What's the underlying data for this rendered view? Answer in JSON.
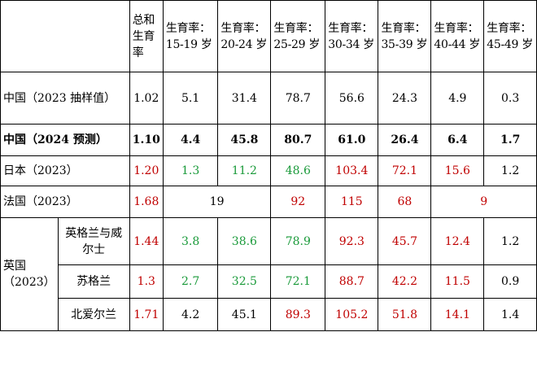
{
  "header": {
    "tfr": "总和生育率",
    "ages": [
      "生育率：15-19 岁",
      "生育率：20-24 岁",
      "生育率：25-29 岁",
      "生育率：30-34 岁",
      "生育率：35-39 岁",
      "生育率：40-44 岁",
      "生育率：45-49 岁"
    ]
  },
  "rows": {
    "cn2023": {
      "label": "中国（2023 抽样值）",
      "values": [
        "1.02",
        "5.1",
        "31.4",
        "78.7",
        "56.6",
        "24.3",
        "4.9",
        "0.3"
      ]
    },
    "cn2024": {
      "label": "中国（2024 预测）",
      "values": [
        "1.10",
        "4.4",
        "45.8",
        "80.7",
        "61.0",
        "26.4",
        "6.4",
        "1.7"
      ]
    },
    "jp": {
      "label": "日本（2023）",
      "values": [
        "1.20",
        "1.3",
        "11.2",
        "48.6",
        "103.4",
        "72.1",
        "15.6",
        "1.2"
      ],
      "colors": [
        "#c00000",
        "#1a9a3a",
        "#1a9a3a",
        "#1a9a3a",
        "#c00000",
        "#c00000",
        "#c00000",
        "#000000"
      ]
    },
    "fr": {
      "label": "法国（2023）",
      "values": [
        "1.68",
        "19",
        "92",
        "115",
        "68",
        "9"
      ],
      "colors": [
        "#c00000",
        "#000000",
        "#c00000",
        "#c00000",
        "#c00000",
        "#c00000"
      ]
    },
    "uk": {
      "label": "英国（2023）",
      "sub": [
        {
          "label": "英格兰与威尔士",
          "values": [
            "1.44",
            "3.8",
            "38.6",
            "78.9",
            "92.3",
            "45.7",
            "12.4",
            "1.2"
          ],
          "colors": [
            "#c00000",
            "#1a9a3a",
            "#1a9a3a",
            "#1a9a3a",
            "#c00000",
            "#c00000",
            "#c00000",
            "#000000"
          ]
        },
        {
          "label": "苏格兰",
          "values": [
            "1.3",
            "2.7",
            "32.5",
            "72.1",
            "88.7",
            "42.2",
            "11.5",
            "0.9"
          ],
          "colors": [
            "#c00000",
            "#1a9a3a",
            "#1a9a3a",
            "#1a9a3a",
            "#c00000",
            "#c00000",
            "#c00000",
            "#000000"
          ]
        },
        {
          "label": "北爱尔兰",
          "values": [
            "1.71",
            "4.2",
            "45.1",
            "89.3",
            "105.2",
            "51.8",
            "14.1",
            "1.4"
          ],
          "colors": [
            "#c00000",
            "#000000",
            "#000000",
            "#c00000",
            "#c00000",
            "#c00000",
            "#c00000",
            "#000000"
          ]
        }
      ]
    }
  }
}
